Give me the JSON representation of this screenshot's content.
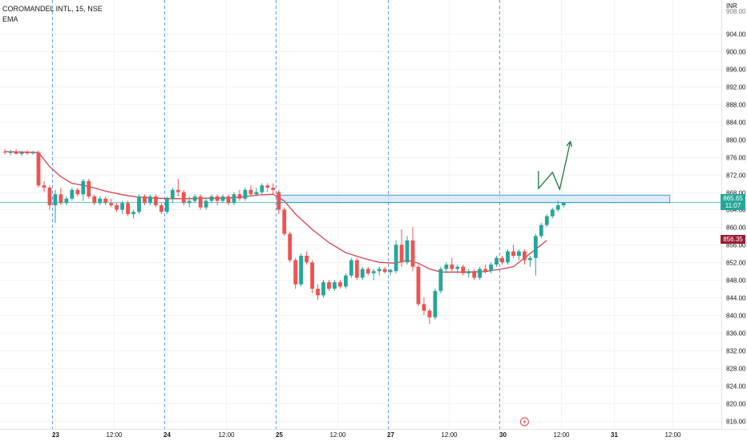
{
  "header": {
    "symbol": "COROMANDEL INTL, 15, NSE",
    "indicator": "EMA"
  },
  "axis": {
    "currency": "INR",
    "partial_top_label": "908.00"
  },
  "price_tags": {
    "last": {
      "price": "865.65",
      "timer": "11:07",
      "color": "#26a69a"
    },
    "ema": {
      "price": "856.35",
      "color": "#9b1b30"
    }
  },
  "colors": {
    "up": "#26a69a",
    "down": "#ef5350",
    "ema": "#d7424f",
    "zone_fill": "#cfe6fa",
    "zone_stroke": "#4a97d8",
    "arrow": "#1e7a3c",
    "session_line": "#5a9ee6",
    "alert": "#e0454b"
  },
  "chart_data": {
    "type": "candlestick",
    "title": "COROMANDEL INTL, 15, NSE",
    "indicator": "EMA",
    "ylim": [
      814,
      910
    ],
    "y_ticks": [
      816,
      820,
      824,
      828,
      832,
      836,
      840,
      844,
      848,
      852,
      856,
      860,
      864,
      868,
      872,
      876,
      880,
      884,
      888,
      892,
      896,
      900,
      904
    ],
    "x_ticks": [
      {
        "label": "23",
        "bold": true,
        "bar": 9
      },
      {
        "label": "12:00",
        "bold": false,
        "bar": 19.5
      },
      {
        "label": "24",
        "bold": true,
        "bar": 29
      },
      {
        "label": "12:00",
        "bold": false,
        "bar": 39.5
      },
      {
        "label": "25",
        "bold": true,
        "bar": 49
      },
      {
        "label": "12:00",
        "bold": false,
        "bar": 59.5
      },
      {
        "label": "27",
        "bold": true,
        "bar": 69
      },
      {
        "label": "12:00",
        "bold": false,
        "bar": 79.5
      },
      {
        "label": "30",
        "bold": true,
        "bar": 89
      },
      {
        "label": "12:00",
        "bold": false,
        "bar": 99.5
      },
      {
        "label": "31",
        "bold": true,
        "bar": 109
      },
      {
        "label": "12:00",
        "bold": false,
        "bar": 119.5
      }
    ],
    "session_breaks": [
      9,
      29,
      49,
      69,
      89
    ],
    "ohlc": [
      [
        877.2,
        877.8,
        876.6,
        877.0
      ],
      [
        877.0,
        877.6,
        876.4,
        877.1
      ],
      [
        877.1,
        877.8,
        876.6,
        876.7
      ],
      [
        876.7,
        877.4,
        876.2,
        877.0
      ],
      [
        877.0,
        877.5,
        876.5,
        876.9
      ],
      [
        876.9,
        877.4,
        876.5,
        877.0
      ],
      [
        877.0,
        877.5,
        869.0,
        869.5
      ],
      [
        869.5,
        870.5,
        868.0,
        869.0
      ],
      [
        869.0,
        869.5,
        864.0,
        865.0
      ],
      [
        865.0,
        868.5,
        861.0,
        867.5
      ],
      [
        867.5,
        869.0,
        865.0,
        865.5
      ],
      [
        865.5,
        867.0,
        865.0,
        866.5
      ],
      [
        866.5,
        869.0,
        866.0,
        868.5
      ],
      [
        868.5,
        869.0,
        867.0,
        867.5
      ],
      [
        867.5,
        871.0,
        866.0,
        870.5
      ],
      [
        870.5,
        871.0,
        866.5,
        867.0
      ],
      [
        867.0,
        867.5,
        865.0,
        865.5
      ],
      [
        865.5,
        867.0,
        865.0,
        866.5
      ],
      [
        866.5,
        867.0,
        865.0,
        865.5
      ],
      [
        865.5,
        866.5,
        864.5,
        865.0
      ],
      [
        865.0,
        865.5,
        863.5,
        864.0
      ],
      [
        864.0,
        866.0,
        863.0,
        865.5
      ],
      [
        865.5,
        866.0,
        862.5,
        863.0
      ],
      [
        863.0,
        864.0,
        862.0,
        863.5
      ],
      [
        863.5,
        867.5,
        863.0,
        867.0
      ],
      [
        867.0,
        867.5,
        865.0,
        865.5
      ],
      [
        865.5,
        867.5,
        865.0,
        867.0
      ],
      [
        867.0,
        867.5,
        864.5,
        865.0
      ],
      [
        865.0,
        865.5,
        863.0,
        863.5
      ],
      [
        863.5,
        867.0,
        863.0,
        866.5
      ],
      [
        866.5,
        869.0,
        865.5,
        868.5
      ],
      [
        868.5,
        871.0,
        867.0,
        868.0
      ],
      [
        868.0,
        868.5,
        865.0,
        865.5
      ],
      [
        865.5,
        867.0,
        864.5,
        866.0
      ],
      [
        866.0,
        867.5,
        865.5,
        867.0
      ],
      [
        867.0,
        867.5,
        864.0,
        864.5
      ],
      [
        864.5,
        866.5,
        864.0,
        866.0
      ],
      [
        866.0,
        867.5,
        865.5,
        867.0
      ],
      [
        867.0,
        867.5,
        865.0,
        866.0
      ],
      [
        866.0,
        867.5,
        865.5,
        867.0
      ],
      [
        867.0,
        867.5,
        865.0,
        865.5
      ],
      [
        865.5,
        868.0,
        865.0,
        867.5
      ],
      [
        867.5,
        868.5,
        866.0,
        866.5
      ],
      [
        866.5,
        869.0,
        866.0,
        868.5
      ],
      [
        868.5,
        869.5,
        867.0,
        867.5
      ],
      [
        867.5,
        869.0,
        867.0,
        868.0
      ],
      [
        868.0,
        870.0,
        867.5,
        869.5
      ],
      [
        869.5,
        870.0,
        868.0,
        869.0
      ],
      [
        869.0,
        870.0,
        867.5,
        868.5
      ],
      [
        868.0,
        868.5,
        863.0,
        864.0
      ],
      [
        864.0,
        864.5,
        858.0,
        858.5
      ],
      [
        858.5,
        859.0,
        852.0,
        852.5
      ],
      [
        852.5,
        853.0,
        846.0,
        847.0
      ],
      [
        847.0,
        854.0,
        846.5,
        853.5
      ],
      [
        853.5,
        854.5,
        851.5,
        852.0
      ],
      [
        852.0,
        852.5,
        845.0,
        846.0
      ],
      [
        846.0,
        847.0,
        843.5,
        844.5
      ],
      [
        844.5,
        848.0,
        844.0,
        847.5
      ],
      [
        847.5,
        848.0,
        845.5,
        846.0
      ],
      [
        846.0,
        848.0,
        845.5,
        847.5
      ],
      [
        847.5,
        848.0,
        846.0,
        846.5
      ],
      [
        846.5,
        849.5,
        846.0,
        849.0
      ],
      [
        849.0,
        853.0,
        848.5,
        852.5
      ],
      [
        852.5,
        853.0,
        848.0,
        848.5
      ],
      [
        848.5,
        851.0,
        848.0,
        850.5
      ],
      [
        850.5,
        851.0,
        849.0,
        849.5
      ],
      [
        849.5,
        850.5,
        848.0,
        850.0
      ],
      [
        850.0,
        851.0,
        849.0,
        850.5
      ],
      [
        850.5,
        851.0,
        849.5,
        849.8
      ],
      [
        849.8,
        850.5,
        849.0,
        850.3
      ],
      [
        850.0,
        857.0,
        849.5,
        856.0
      ],
      [
        856.0,
        859.5,
        851.0,
        852.0
      ],
      [
        852.0,
        858.0,
        851.5,
        857.0
      ],
      [
        857.0,
        860.0,
        850.0,
        851.0
      ],
      [
        851.0,
        851.5,
        842.0,
        842.5
      ],
      [
        842.5,
        844.0,
        840.0,
        841.0
      ],
      [
        841.0,
        841.5,
        838.0,
        839.5
      ],
      [
        839.5,
        846.0,
        839.0,
        845.5
      ],
      [
        845.5,
        851.0,
        845.0,
        850.5
      ],
      [
        850.5,
        852.0,
        849.5,
        851.5
      ],
      [
        851.5,
        853.0,
        850.0,
        850.5
      ],
      [
        850.5,
        851.5,
        849.5,
        851.0
      ],
      [
        851.0,
        851.5,
        849.0,
        849.5
      ],
      [
        849.5,
        850.5,
        848.5,
        850.0
      ],
      [
        850.0,
        850.5,
        848.0,
        848.5
      ],
      [
        848.5,
        851.0,
        848.0,
        850.5
      ],
      [
        850.5,
        851.5,
        849.5,
        850.0
      ],
      [
        850.0,
        852.0,
        849.5,
        851.5
      ],
      [
        851.5,
        853.5,
        851.0,
        853.0
      ],
      [
        853.0,
        853.5,
        851.5,
        852.0
      ],
      [
        852.0,
        855.0,
        851.5,
        854.5
      ],
      [
        854.5,
        856.0,
        853.0,
        853.5
      ],
      [
        853.5,
        855.0,
        852.5,
        854.5
      ],
      [
        854.5,
        855.0,
        851.5,
        852.5
      ],
      [
        852.5,
        853.5,
        851.0,
        853.0
      ],
      [
        853.0,
        858.5,
        849.0,
        858.0
      ],
      [
        858.0,
        861.0,
        857.5,
        860.5
      ],
      [
        860.5,
        863.0,
        860.0,
        862.5
      ],
      [
        862.5,
        864.5,
        862.0,
        864.0
      ],
      [
        864.0,
        866.0,
        863.5,
        865.0
      ],
      [
        865.0,
        865.8,
        864.5,
        865.65
      ]
    ],
    "ema": [
      [
        0,
        877.2
      ],
      [
        6,
        877.0
      ],
      [
        8,
        873.8
      ],
      [
        10,
        871.5
      ],
      [
        12,
        870.0
      ],
      [
        15,
        869.3
      ],
      [
        18,
        868.2
      ],
      [
        21,
        867.4
      ],
      [
        24,
        866.8
      ],
      [
        27,
        866.6
      ],
      [
        30,
        866.5
      ],
      [
        33,
        866.5
      ],
      [
        36,
        866.6
      ],
      [
        39,
        866.6
      ],
      [
        42,
        866.8
      ],
      [
        45,
        867.3
      ],
      [
        48,
        867.5
      ],
      [
        50,
        866.0
      ],
      [
        52,
        863.0
      ],
      [
        55,
        859.5
      ],
      [
        58,
        856.5
      ],
      [
        61,
        854.2
      ],
      [
        64,
        853.0
      ],
      [
        67,
        852.0
      ],
      [
        70,
        851.8
      ],
      [
        72,
        852.5
      ],
      [
        74,
        851.8
      ],
      [
        76,
        850.5
      ],
      [
        78,
        849.8
      ],
      [
        80,
        849.8
      ],
      [
        83,
        849.8
      ],
      [
        86,
        849.9
      ],
      [
        89,
        850.5
      ],
      [
        91,
        851.0
      ],
      [
        93,
        853.0
      ],
      [
        95,
        855.0
      ],
      [
        97,
        857.0
      ]
    ],
    "annotations": {
      "zone": {
        "x_from_bar": 49.3,
        "x_to_bar": 119,
        "y_top": 867.3,
        "y_bottom": 865.6
      },
      "arrow_path": [
        [
          95.5,
          872.8
        ],
        [
          95.5,
          868.8
        ],
        [
          98,
          872.5
        ],
        [
          99.3,
          868.6
        ],
        [
          101.2,
          879.5
        ]
      ],
      "alert_bar": 93,
      "last_price": 865.65,
      "ema_last": 856.35
    }
  }
}
